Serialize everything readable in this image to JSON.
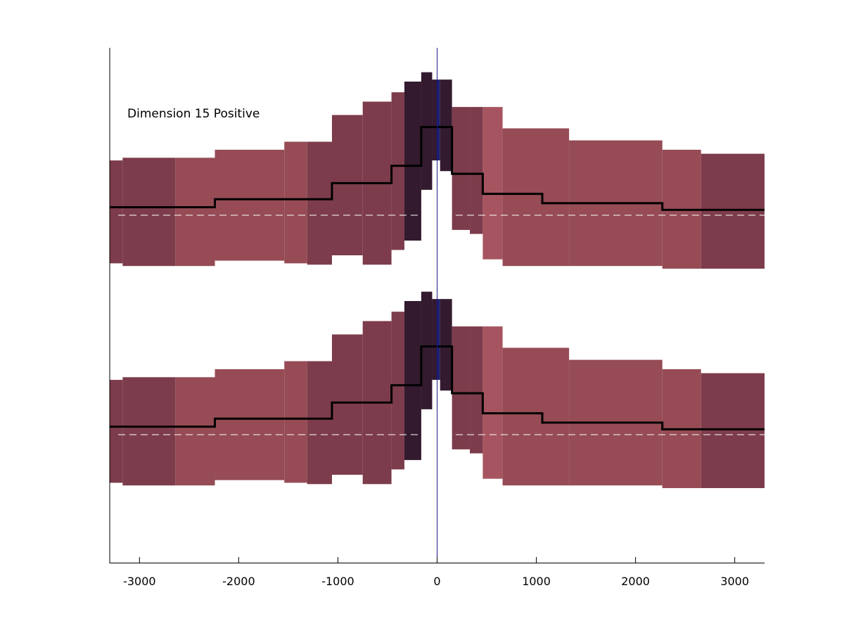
{
  "chart_data": {
    "type": "area",
    "title": "",
    "xlabel": "",
    "ylabel": "",
    "annotation": "Dimension 15 Positive",
    "xlim": [
      -3300,
      3300
    ],
    "xticks": [
      -3000,
      -2000,
      -1000,
      0,
      1000,
      2000,
      3000
    ],
    "xtick_labels": [
      "-3000",
      "-2000",
      "-1000",
      "0",
      "1000",
      "2000",
      "3000"
    ],
    "grid": false,
    "legend": "none",
    "center_line_x": 0,
    "panels": [
      {
        "id": "upper",
        "baseline": 0,
        "bins": [
          {
            "x0": -3300,
            "x1": -3170,
            "lo": -0.72,
            "hi": 0.82,
            "shade": 1
          },
          {
            "x0": -3170,
            "x1": -2640,
            "lo": -0.76,
            "hi": 0.86,
            "shade": 1
          },
          {
            "x0": -2640,
            "x1": -2240,
            "lo": -0.76,
            "hi": 0.86,
            "shade": 0
          },
          {
            "x0": -2240,
            "x1": -1540,
            "lo": -0.68,
            "hi": 0.98,
            "shade": 0
          },
          {
            "x0": -1540,
            "x1": -1310,
            "lo": -0.72,
            "hi": 1.1,
            "shade": 0
          },
          {
            "x0": -1310,
            "x1": -1060,
            "lo": -0.74,
            "hi": 1.1,
            "shade": 1
          },
          {
            "x0": -1060,
            "x1": -750,
            "lo": -0.6,
            "hi": 1.5,
            "shade": 1
          },
          {
            "x0": -750,
            "x1": -460,
            "lo": -0.74,
            "hi": 1.7,
            "shade": 1
          },
          {
            "x0": -460,
            "x1": -330,
            "lo": -0.52,
            "hi": 1.84,
            "shade": 1
          },
          {
            "x0": -330,
            "x1": -160,
            "lo": -0.38,
            "hi": 2.0,
            "shade": 2
          },
          {
            "x0": -160,
            "x1": -50,
            "lo": 0.38,
            "hi": 2.14,
            "shade": 2
          },
          {
            "x0": -50,
            "x1": 0,
            "lo": 0.82,
            "hi": 2.03,
            "shade": 2
          },
          {
            "x0": 0,
            "x1": 30,
            "lo": 0.82,
            "hi": 2.03,
            "shade": 3
          },
          {
            "x0": 30,
            "x1": 150,
            "lo": 0.66,
            "hi": 2.03,
            "shade": 2
          },
          {
            "x0": 150,
            "x1": 330,
            "lo": -0.22,
            "hi": 1.62,
            "shade": 1
          },
          {
            "x0": 330,
            "x1": 460,
            "lo": -0.28,
            "hi": 1.62,
            "shade": 1
          },
          {
            "x0": 460,
            "x1": 660,
            "lo": -0.66,
            "hi": 1.62,
            "shade": 4
          },
          {
            "x0": 660,
            "x1": 1330,
            "lo": -0.76,
            "hi": 1.3,
            "shade": 0
          },
          {
            "x0": 1330,
            "x1": 2270,
            "lo": -0.76,
            "hi": 1.12,
            "shade": 0
          },
          {
            "x0": 2270,
            "x1": 2660,
            "lo": -0.8,
            "hi": 0.98,
            "shade": 0
          },
          {
            "x0": 2660,
            "x1": 3300,
            "lo": -0.8,
            "hi": 0.92,
            "shade": 1
          }
        ],
        "mean_steps": [
          {
            "x0": -3300,
            "x1": -2240,
            "y": 0.12
          },
          {
            "x0": -2240,
            "x1": -1060,
            "y": 0.24
          },
          {
            "x0": -1060,
            "x1": -460,
            "y": 0.48
          },
          {
            "x0": -460,
            "x1": -160,
            "y": 0.74
          },
          {
            "x0": -160,
            "x1": 150,
            "y": 1.32
          },
          {
            "x0": 150,
            "x1": 460,
            "y": 0.62
          },
          {
            "x0": 460,
            "x1": 1060,
            "y": 0.32
          },
          {
            "x0": 1060,
            "x1": 2270,
            "y": 0.18
          },
          {
            "x0": 2270,
            "x1": 3300,
            "y": 0.08
          }
        ]
      },
      {
        "id": "lower",
        "baseline": 0,
        "bins": [
          {
            "x0": -3300,
            "x1": -3170,
            "lo": -0.72,
            "hi": 0.82,
            "shade": 1
          },
          {
            "x0": -3170,
            "x1": -2640,
            "lo": -0.76,
            "hi": 0.86,
            "shade": 1
          },
          {
            "x0": -2640,
            "x1": -2240,
            "lo": -0.76,
            "hi": 0.86,
            "shade": 0
          },
          {
            "x0": -2240,
            "x1": -1540,
            "lo": -0.68,
            "hi": 0.98,
            "shade": 0
          },
          {
            "x0": -1540,
            "x1": -1310,
            "lo": -0.72,
            "hi": 1.1,
            "shade": 0
          },
          {
            "x0": -1310,
            "x1": -1060,
            "lo": -0.74,
            "hi": 1.1,
            "shade": 1
          },
          {
            "x0": -1060,
            "x1": -750,
            "lo": -0.6,
            "hi": 1.5,
            "shade": 1
          },
          {
            "x0": -750,
            "x1": -460,
            "lo": -0.74,
            "hi": 1.7,
            "shade": 1
          },
          {
            "x0": -460,
            "x1": -330,
            "lo": -0.52,
            "hi": 1.84,
            "shade": 1
          },
          {
            "x0": -330,
            "x1": -160,
            "lo": -0.38,
            "hi": 2.0,
            "shade": 2
          },
          {
            "x0": -160,
            "x1": -50,
            "lo": 0.38,
            "hi": 2.14,
            "shade": 2
          },
          {
            "x0": -50,
            "x1": 0,
            "lo": 0.82,
            "hi": 2.03,
            "shade": 2
          },
          {
            "x0": 0,
            "x1": 30,
            "lo": 0.82,
            "hi": 2.03,
            "shade": 3
          },
          {
            "x0": 30,
            "x1": 150,
            "lo": 0.66,
            "hi": 2.03,
            "shade": 2
          },
          {
            "x0": 150,
            "x1": 330,
            "lo": -0.22,
            "hi": 1.62,
            "shade": 1
          },
          {
            "x0": 330,
            "x1": 460,
            "lo": -0.28,
            "hi": 1.62,
            "shade": 1
          },
          {
            "x0": 460,
            "x1": 660,
            "lo": -0.66,
            "hi": 1.62,
            "shade": 4
          },
          {
            "x0": 660,
            "x1": 1330,
            "lo": -0.76,
            "hi": 1.3,
            "shade": 0
          },
          {
            "x0": 1330,
            "x1": 2270,
            "lo": -0.76,
            "hi": 1.12,
            "shade": 0
          },
          {
            "x0": 2270,
            "x1": 2660,
            "lo": -0.8,
            "hi": 0.98,
            "shade": 0
          },
          {
            "x0": 2660,
            "x1": 3300,
            "lo": -0.8,
            "hi": 0.92,
            "shade": 1
          }
        ],
        "mean_steps": [
          {
            "x0": -3300,
            "x1": -2240,
            "y": 0.12
          },
          {
            "x0": -2240,
            "x1": -1060,
            "y": 0.24
          },
          {
            "x0": -1060,
            "x1": -460,
            "y": 0.48
          },
          {
            "x0": -460,
            "x1": -160,
            "y": 0.74
          },
          {
            "x0": -160,
            "x1": 150,
            "y": 1.32
          },
          {
            "x0": 150,
            "x1": 460,
            "y": 0.62
          },
          {
            "x0": 460,
            "x1": 1060,
            "y": 0.32
          },
          {
            "x0": 1060,
            "x1": 2270,
            "y": 0.18
          },
          {
            "x0": 2270,
            "x1": 3300,
            "y": 0.08
          }
        ]
      }
    ],
    "colors": {
      "band_shades": [
        "#964b55",
        "#7d3c4b",
        "#331a2e",
        "#1c1f6b",
        "#a65560"
      ],
      "mean_line": "#000000",
      "baseline_dash": "#ffffff",
      "center_line": "#1c1a8a",
      "axes": "#000000"
    }
  }
}
